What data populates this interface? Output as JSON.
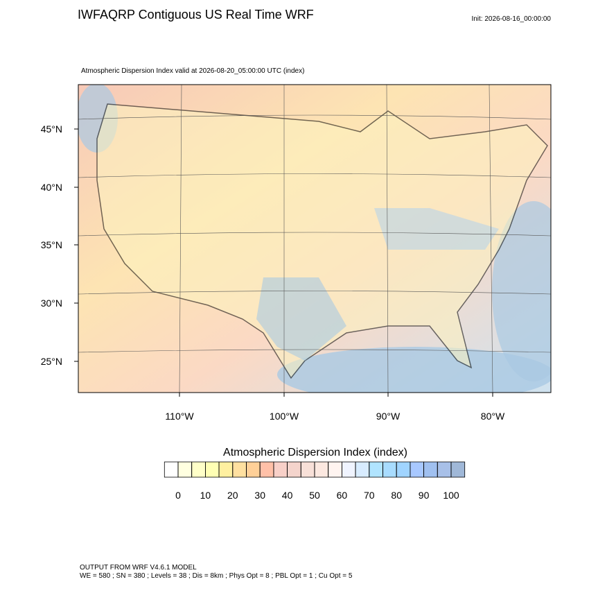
{
  "header": {
    "title": "IWFAQRP Contiguous US Real Time WRF",
    "init": "Init: 2026-08-16_00:00:00",
    "subtitle": "Atmospheric Dispersion Index valid at 2026-08-20_05:00:00 UTC   (index)"
  },
  "map": {
    "lat_labels": [
      "45°N",
      "40°N",
      "35°N",
      "30°N",
      "25°N"
    ],
    "lon_labels": [
      "110°W",
      "100°W",
      "90°W",
      "80°W"
    ]
  },
  "colorbar": {
    "title": "Atmospheric Dispersion Index  (index)",
    "levels": [
      0,
      5,
      10,
      15,
      20,
      25,
      30,
      35,
      40,
      45,
      50,
      55,
      60,
      65,
      70,
      75,
      80,
      85,
      90,
      95,
      100
    ],
    "colors": [
      "#ffffff",
      "#ffffe0",
      "#ffffc8",
      "#ffffb4",
      "#fff0a0",
      "#ffe0a0",
      "#ffd098",
      "#ffc0a8",
      "#f8d0c8",
      "#f4d4cc",
      "#f8e0d8",
      "#fce8e0",
      "#fff4f0",
      "#f0f4ff",
      "#d8ecff",
      "#b0e4ff",
      "#a8dcff",
      "#a0d4ff",
      "#a8c8ff",
      "#a0c0f0",
      "#a8c0e8",
      "#a0b8d8"
    ],
    "ticks": [
      0,
      10,
      20,
      30,
      40,
      50,
      60,
      70,
      80,
      90,
      100
    ]
  },
  "footer": [
    "OUTPUT FROM WRF V4.6.1 MODEL",
    "WE = 580 ; SN = 380 ; Levels = 38 ; Dis = 8km ; Phys Opt = 8 ; PBL Opt = 1 ; Cu Opt = 5"
  ]
}
